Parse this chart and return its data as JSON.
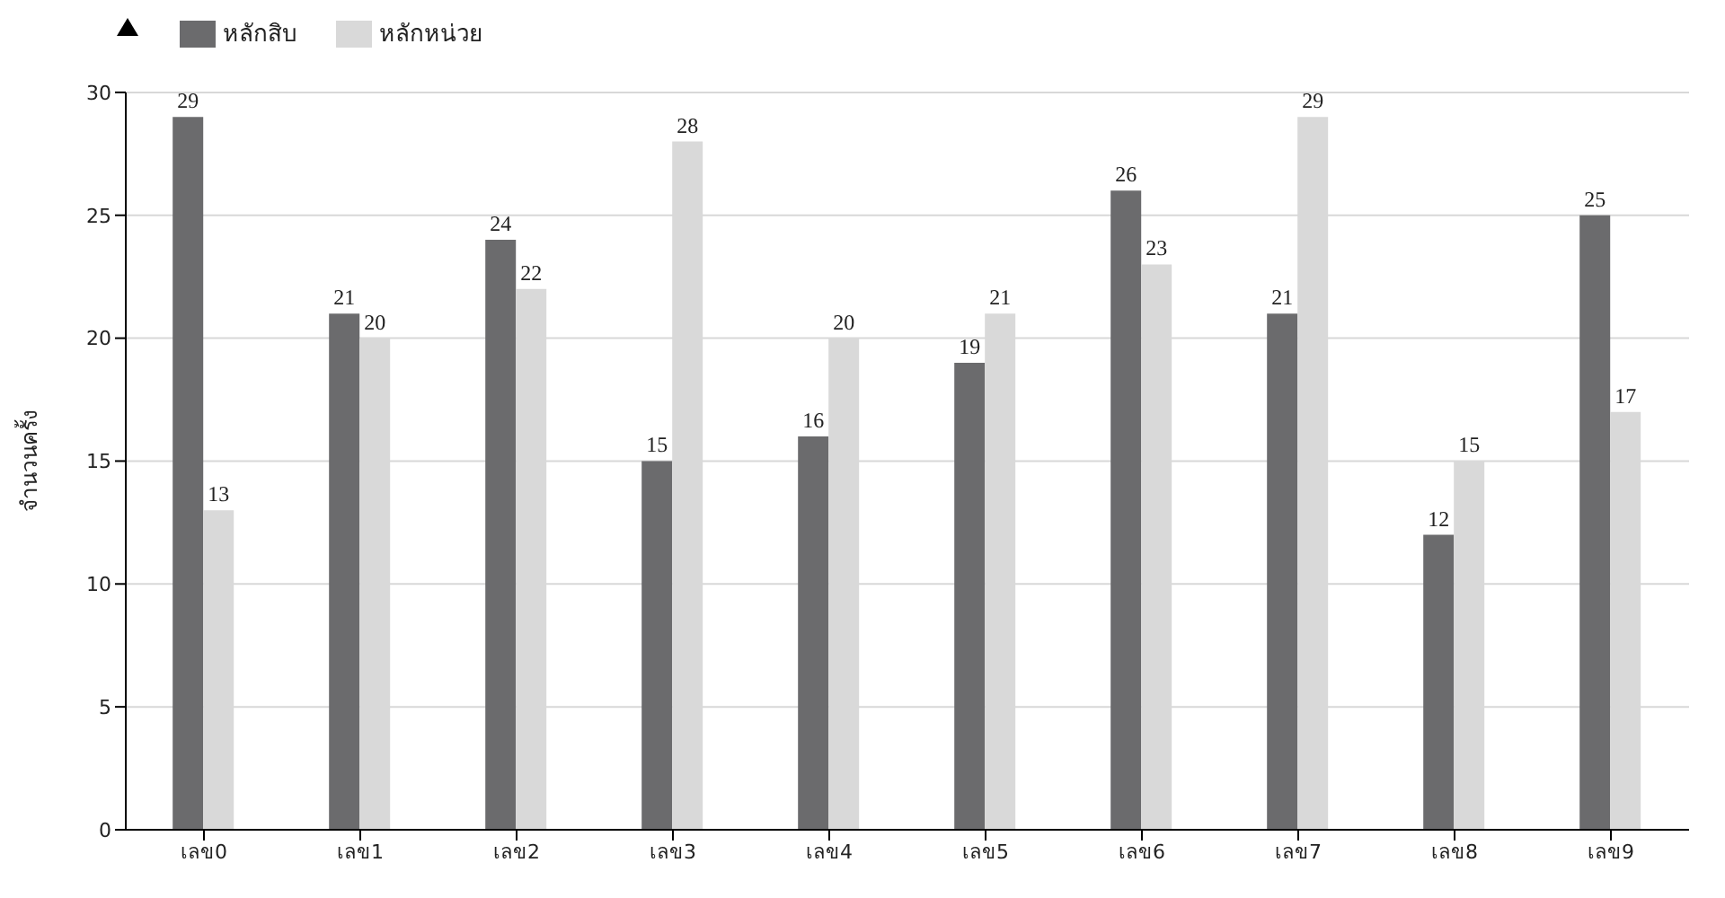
{
  "chart_data": {
    "type": "bar",
    "ylabel": "จำนวนครั้ง",
    "categories": [
      "เลข0",
      "เลข1",
      "เลข2",
      "เลข3",
      "เลข4",
      "เลข5",
      "เลข6",
      "เลข7",
      "เลข8",
      "เลข9"
    ],
    "series": [
      {
        "name": "หลักสิบ",
        "color": "#6b6b6d",
        "values": [
          29,
          21,
          24,
          15,
          16,
          19,
          26,
          21,
          12,
          25
        ]
      },
      {
        "name": "หลักหน่วย",
        "color": "#d9d9d9",
        "values": [
          13,
          20,
          22,
          28,
          20,
          21,
          23,
          29,
          15,
          17
        ]
      }
    ],
    "ylim": [
      0,
      30
    ],
    "yticks": [
      0,
      5,
      10,
      15,
      20,
      25,
      30
    ],
    "grid": "y",
    "legend": "top left",
    "data_labels": true
  }
}
